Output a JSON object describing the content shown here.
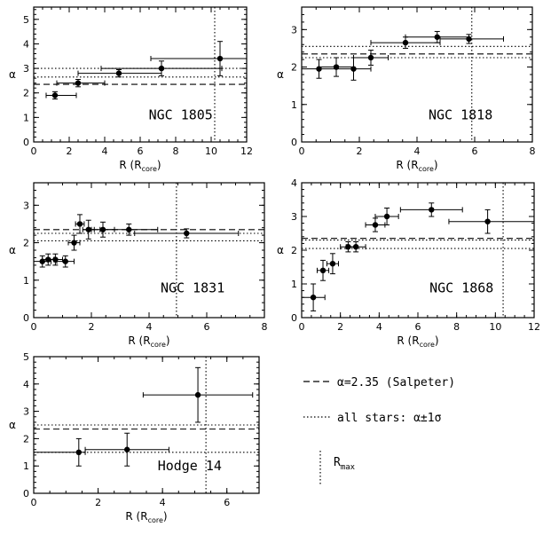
{
  "chart_data": [
    {
      "type": "scatter",
      "cluster": "NGC 1805",
      "xlabel": "R",
      "xlabel_unit": "core",
      "ylabel": "α",
      "xlim": [
        0,
        12
      ],
      "ylim": [
        0,
        5.5
      ],
      "xticks": [
        0,
        2,
        4,
        6,
        8,
        10,
        12
      ],
      "yticks": [
        0,
        1,
        2,
        3,
        4,
        5
      ],
      "salpeter": 2.35,
      "all_stars": [
        2.65,
        3.0
      ],
      "r_max": 10.2,
      "points": [
        {
          "x": 1.2,
          "y": 1.9,
          "xerr": [
            0.5,
            1.2
          ],
          "yerr": [
            0.15,
            0.15
          ]
        },
        {
          "x": 2.5,
          "y": 2.4,
          "xerr": [
            1.2,
            1.5
          ],
          "yerr": [
            0.15,
            0.15
          ]
        },
        {
          "x": 4.8,
          "y": 2.8,
          "xerr": [
            2.3,
            2.4
          ],
          "yerr": [
            0.15,
            0.15
          ]
        },
        {
          "x": 7.2,
          "y": 3.0,
          "xerr": [
            3.4,
            3.4
          ],
          "yerr": [
            0.3,
            0.3
          ]
        },
        {
          "x": 10.5,
          "y": 3.4,
          "xerr": [
            3.9,
            1.5
          ],
          "yerr": [
            0.7,
            0.7
          ]
        }
      ]
    },
    {
      "type": "scatter",
      "cluster": "NGC 1818",
      "xlabel": "R",
      "xlabel_unit": "core",
      "ylabel": "α",
      "xlim": [
        0,
        8
      ],
      "ylim": [
        0,
        3.6
      ],
      "xticks": [
        0,
        2,
        4,
        6,
        8
      ],
      "yticks": [
        0,
        1,
        2,
        3
      ],
      "salpeter": 2.35,
      "all_stars": [
        2.25,
        2.55
      ],
      "r_max": 5.9,
      "points": [
        {
          "x": 0.6,
          "y": 1.95,
          "xerr": [
            0.6,
            0.6
          ],
          "yerr": [
            0.25,
            0.25
          ]
        },
        {
          "x": 1.2,
          "y": 2.0,
          "xerr": [
            0.6,
            0.6
          ],
          "yerr": [
            0.25,
            0.25
          ]
        },
        {
          "x": 1.8,
          "y": 1.95,
          "xerr": [
            0.6,
            0.6
          ],
          "yerr": [
            0.3,
            0.3
          ]
        },
        {
          "x": 2.4,
          "y": 2.25,
          "xerr": [
            0.6,
            0.6
          ],
          "yerr": [
            0.2,
            0.2
          ]
        },
        {
          "x": 3.6,
          "y": 2.65,
          "xerr": [
            1.2,
            1.2
          ],
          "yerr": [
            0.15,
            0.15
          ]
        },
        {
          "x": 4.7,
          "y": 2.8,
          "xerr": [
            1.1,
            1.1
          ],
          "yerr": [
            0.15,
            0.15
          ]
        },
        {
          "x": 5.8,
          "y": 2.75,
          "xerr": [
            1.0,
            1.2
          ],
          "yerr": [
            0.12,
            0.12
          ]
        }
      ]
    },
    {
      "type": "scatter",
      "cluster": "NGC 1831",
      "xlabel": "R",
      "xlabel_unit": "core",
      "ylabel": "α",
      "xlim": [
        0,
        8
      ],
      "ylim": [
        0,
        3.6
      ],
      "xticks": [
        0,
        2,
        4,
        6,
        8
      ],
      "yticks": [
        0,
        1,
        2,
        3
      ],
      "salpeter": 2.35,
      "all_stars": [
        2.05,
        2.25
      ],
      "r_max": 4.95,
      "points": [
        {
          "x": 0.3,
          "y": 1.5,
          "xerr": [
            0.3,
            0.3
          ],
          "yerr": [
            0.15,
            0.15
          ]
        },
        {
          "x": 0.5,
          "y": 1.55,
          "xerr": [
            0.2,
            0.2
          ],
          "yerr": [
            0.15,
            0.15
          ]
        },
        {
          "x": 0.75,
          "y": 1.55,
          "xerr": [
            0.25,
            0.25
          ],
          "yerr": [
            0.15,
            0.15
          ]
        },
        {
          "x": 1.1,
          "y": 1.5,
          "xerr": [
            0.3,
            0.3
          ],
          "yerr": [
            0.15,
            0.15
          ]
        },
        {
          "x": 1.4,
          "y": 2.0,
          "xerr": [
            0.2,
            0.2
          ],
          "yerr": [
            0.2,
            0.2
          ]
        },
        {
          "x": 1.6,
          "y": 2.5,
          "xerr": [
            0.15,
            0.15
          ],
          "yerr": [
            0.25,
            0.25
          ]
        },
        {
          "x": 1.9,
          "y": 2.35,
          "xerr": [
            0.2,
            0.2
          ],
          "yerr": [
            0.25,
            0.25
          ]
        },
        {
          "x": 2.4,
          "y": 2.35,
          "xerr": [
            0.4,
            0.4
          ],
          "yerr": [
            0.2,
            0.2
          ]
        },
        {
          "x": 3.3,
          "y": 2.35,
          "xerr": [
            1.0,
            1.0
          ],
          "yerr": [
            0.15,
            0.15
          ]
        },
        {
          "x": 5.3,
          "y": 2.25,
          "xerr": [
            1.8,
            1.8
          ],
          "yerr": [
            0.12,
            0.12
          ]
        }
      ]
    },
    {
      "type": "scatter",
      "cluster": "NGC 1868",
      "xlabel": "R",
      "xlabel_unit": "core",
      "ylabel": "α",
      "xlim": [
        0,
        12
      ],
      "ylim": [
        0,
        4
      ],
      "xticks": [
        0,
        2,
        4,
        6,
        8,
        10,
        12
      ],
      "yticks": [
        0,
        1,
        2,
        3,
        4
      ],
      "salpeter": 2.35,
      "all_stars": [
        2.05,
        2.3
      ],
      "r_max": 10.4,
      "points": [
        {
          "x": 0.6,
          "y": 0.6,
          "xerr": [
            0.6,
            0.6
          ],
          "yerr": [
            0.4,
            0.4
          ]
        },
        {
          "x": 1.1,
          "y": 1.4,
          "xerr": [
            0.3,
            0.3
          ],
          "yerr": [
            0.3,
            0.3
          ]
        },
        {
          "x": 1.6,
          "y": 1.6,
          "xerr": [
            0.3,
            0.3
          ],
          "yerr": [
            0.3,
            0.3
          ]
        },
        {
          "x": 2.4,
          "y": 2.1,
          "xerr": [
            0.4,
            0.4
          ],
          "yerr": [
            0.15,
            0.15
          ]
        },
        {
          "x": 2.8,
          "y": 2.1,
          "xerr": [
            0.5,
            0.5
          ],
          "yerr": [
            0.15,
            0.15
          ]
        },
        {
          "x": 3.8,
          "y": 2.75,
          "xerr": [
            0.5,
            0.5
          ],
          "yerr": [
            0.2,
            0.2
          ]
        },
        {
          "x": 4.4,
          "y": 3.0,
          "xerr": [
            0.6,
            0.6
          ],
          "yerr": [
            0.25,
            0.25
          ]
        },
        {
          "x": 6.7,
          "y": 3.2,
          "xerr": [
            1.6,
            1.6
          ],
          "yerr": [
            0.2,
            0.2
          ]
        },
        {
          "x": 9.6,
          "y": 2.85,
          "xerr": [
            2.0,
            2.4
          ],
          "yerr": [
            0.35,
            0.35
          ]
        }
      ]
    },
    {
      "type": "scatter",
      "cluster": "Hodge 14",
      "xlabel": "R",
      "xlabel_unit": "core",
      "ylabel": "α",
      "xlim": [
        0,
        7
      ],
      "ylim": [
        0,
        5
      ],
      "xticks": [
        0,
        2,
        4,
        6
      ],
      "yticks": [
        0,
        1,
        2,
        3,
        4,
        5
      ],
      "salpeter": 2.35,
      "all_stars": [
        1.5,
        2.5
      ],
      "r_max": 5.35,
      "points": [
        {
          "x": 1.4,
          "y": 1.5,
          "xerr": [
            1.4,
            0.2
          ],
          "yerr": [
            0.5,
            0.5
          ]
        },
        {
          "x": 2.9,
          "y": 1.6,
          "xerr": [
            1.3,
            1.3
          ],
          "yerr": [
            0.6,
            0.6
          ]
        },
        {
          "x": 5.1,
          "y": 3.6,
          "xerr": [
            1.7,
            1.7
          ],
          "yerr": [
            1.0,
            1.0
          ]
        }
      ]
    }
  ],
  "legend": {
    "salpeter_label": "α=2.35 (Salpeter)",
    "allstars_label": "all stars: α±1σ",
    "rmax_label": "R",
    "rmax_sub": "max"
  }
}
